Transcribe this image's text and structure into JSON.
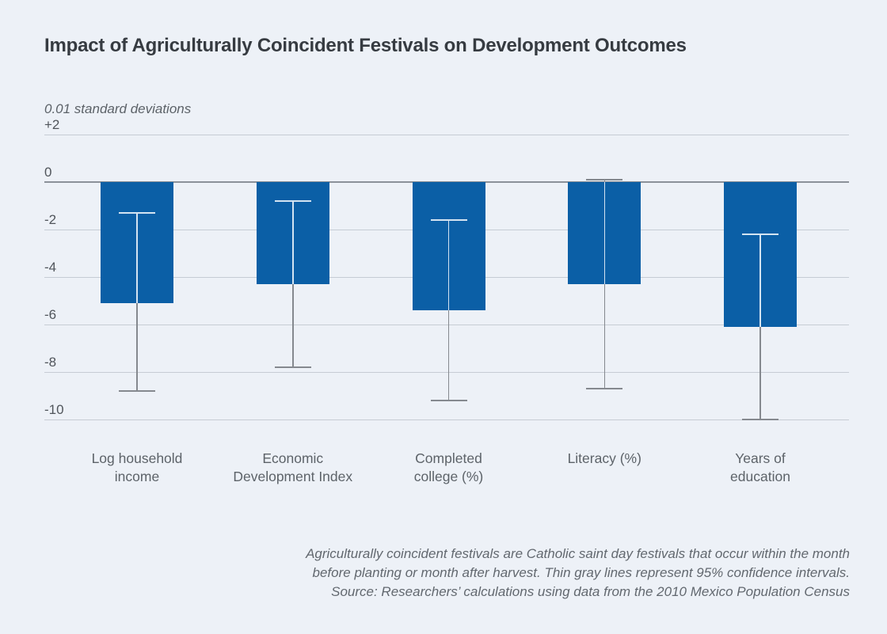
{
  "footnote": {
    "line1": "Agriculturally coincident festivals are Catholic saint day festivals that occur within the month",
    "line2": "before planting or month after harvest. Thin gray lines represent 95% confidence intervals.",
    "line3": "Source: Researchers’ calculations using data from the 2010 Mexico Population Census"
  },
  "colors": {
    "background": "#edf1f7",
    "bar": "#0b5fa6",
    "gridline": "#c6ccd4",
    "zero_line": "#8b9199",
    "ci_gray": "#85898f",
    "ci_over_bar": "#d4e4f2",
    "title_text": "#363b41",
    "tick_text": "#50555b",
    "category_text": "#5d6369",
    "footnote_text": "#62686f"
  },
  "chart_data": {
    "type": "bar",
    "title": "Impact of Agriculturally Coincident Festivals on Development Outcomes",
    "ylabel": "0.01 standard deviations",
    "categories": [
      "Log household income",
      "Economic Development Index",
      "Completed college (%)",
      "Literacy (%)",
      "Years of education"
    ],
    "category_label_lines": [
      [
        "Log household",
        "income"
      ],
      [
        "Economic",
        "Development Index"
      ],
      [
        "Completed",
        "college (%)"
      ],
      [
        "Literacy (%)"
      ],
      [
        "Years of",
        "education"
      ]
    ],
    "values": [
      -5.1,
      -4.3,
      -5.4,
      -4.3,
      -6.1
    ],
    "ci_upper": [
      -1.3,
      -0.8,
      -1.6,
      0.1,
      -2.2
    ],
    "ci_lower": [
      -8.8,
      -7.8,
      -9.2,
      -8.7,
      -10.0
    ],
    "ylim": [
      -10.3,
      2
    ],
    "yticks": [
      2,
      0,
      -2,
      -4,
      -6,
      -8,
      -10
    ],
    "ytick_labels": [
      "+2",
      "0",
      "-2",
      "-4",
      "-6",
      "-8",
      "-10"
    ],
    "grid": true,
    "legend_position": "none"
  }
}
